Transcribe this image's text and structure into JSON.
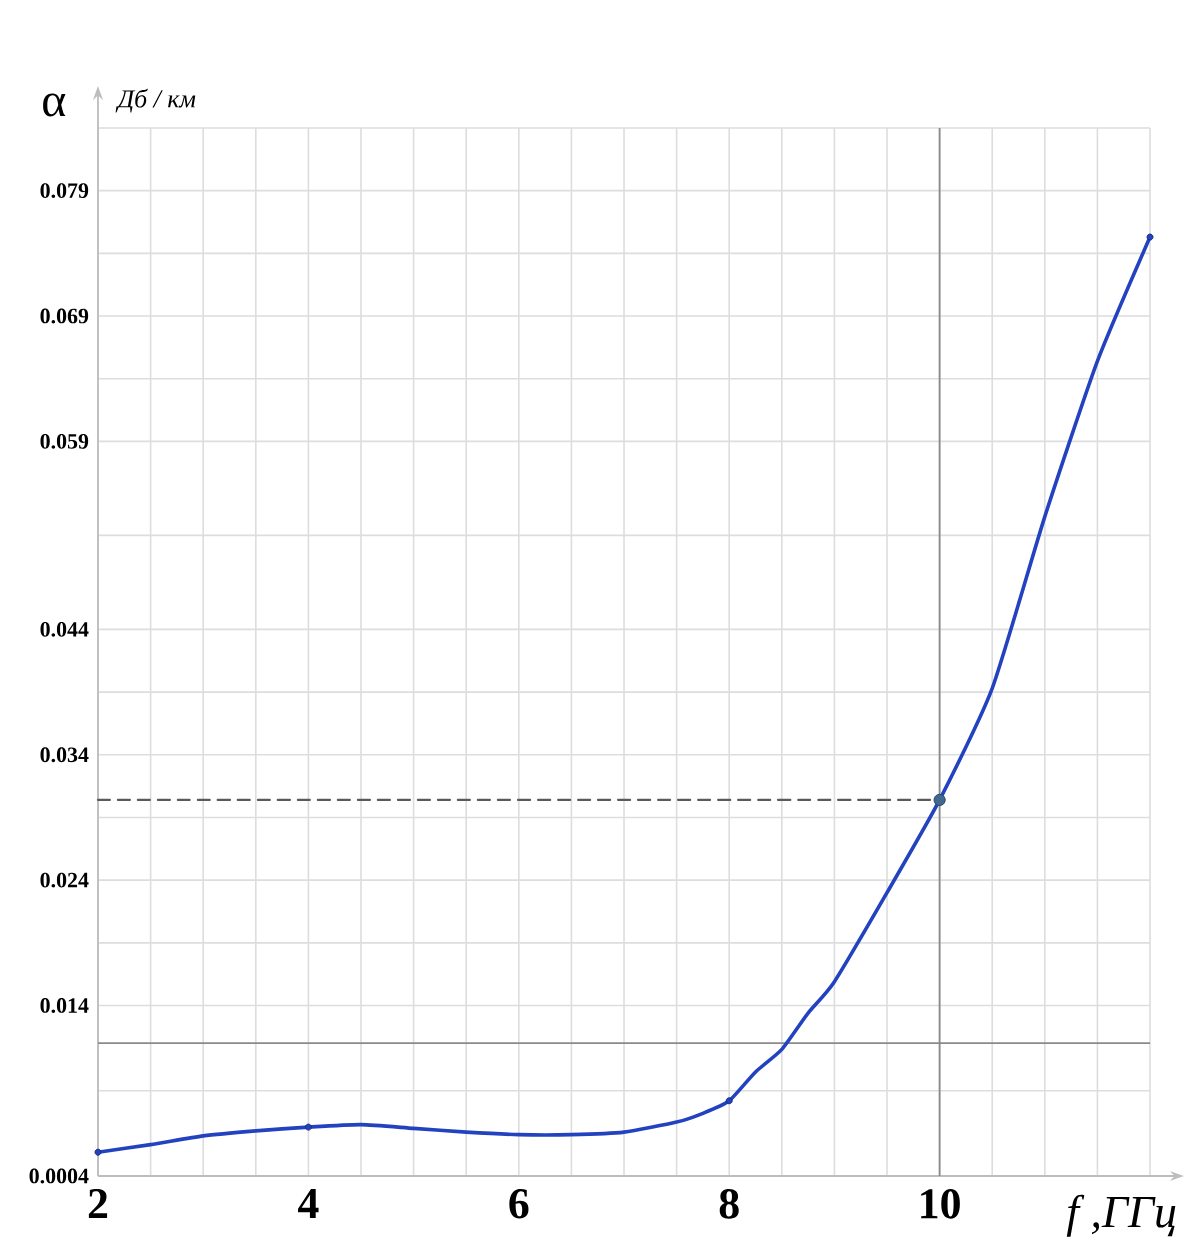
{
  "chart_data": {
    "type": "line",
    "xlabel": "f ,ГГц",
    "ylabel": "α",
    "annotations": [
      "Дб / км"
    ],
    "xlim": [
      2,
      12
    ],
    "ylim": [
      0.0004,
      0.084
    ],
    "xticks": [
      2,
      {
        "value": 2.5,
        "label": null
      },
      {
        "value": 3,
        "label": null
      },
      {
        "value": 3.5,
        "label": null
      },
      4,
      {
        "value": 4.5,
        "label": null
      },
      {
        "value": 5,
        "label": null
      },
      {
        "value": 5.5,
        "label": null
      },
      6,
      {
        "value": 6.5,
        "label": null
      },
      {
        "value": 7,
        "label": null
      },
      {
        "value": 7.5,
        "label": null
      },
      8,
      {
        "value": 8.5,
        "label": null
      },
      {
        "value": 9,
        "label": null
      },
      {
        "value": 9.5,
        "label": null
      },
      10,
      {
        "value": 10.5,
        "label": null
      },
      {
        "value": 11,
        "label": null
      },
      {
        "value": 11.5,
        "label": null
      },
      {
        "value": 12,
        "label": null
      }
    ],
    "yticks": [
      0.0004,
      {
        "value": 0.0072,
        "label": null
      },
      0.014,
      {
        "value": 0.019,
        "label": null
      },
      0.024,
      {
        "value": 0.029,
        "label": null
      },
      0.034,
      {
        "value": 0.039,
        "label": null
      },
      0.044,
      {
        "value": 0.0515,
        "label": null
      },
      0.059,
      {
        "value": 0.064,
        "label": null
      },
      0.069,
      {
        "value": 0.074,
        "label": null
      },
      0.079,
      {
        "value": 0.084,
        "label": null
      }
    ],
    "grid": true,
    "series": [
      {
        "color": "#2342c0",
        "marker": "none",
        "line_style": "solid",
        "x": [
          2,
          2.5,
          3,
          3.5,
          4,
          4.5,
          5,
          5.5,
          6,
          6.5,
          7,
          7.5,
          7.75,
          8,
          8.25,
          8.5,
          8.75,
          9,
          9.5,
          10,
          10.5,
          11,
          11.5,
          12
        ],
        "values": [
          0.0023,
          0.0029,
          0.0036,
          0.004,
          0.0043,
          0.0045,
          0.0042,
          0.0039,
          0.0037,
          0.0037,
          0.0039,
          0.0047,
          0.0054,
          0.0064,
          0.0087,
          0.0105,
          0.0134,
          0.0159,
          0.023,
          0.0304,
          0.0393,
          0.053,
          0.0654,
          0.0753
        ]
      },
      {
        "type": "scatter",
        "color": "#2342c0",
        "marker": "circle",
        "x": [
          2,
          4,
          8,
          12
        ],
        "values": [
          0.0023,
          0.0043,
          0.0064,
          0.0753
        ]
      },
      {
        "type": "line",
        "color": "#5a5a5a",
        "marker": "none",
        "line_style": "dashed",
        "x": [
          2,
          10
        ],
        "values": [
          0.0304,
          0.0304
        ]
      },
      {
        "type": "scatter",
        "color": "#41698f",
        "marker": "circle",
        "x": [
          10
        ],
        "values": [
          0.0304
        ]
      }
    ],
    "ref_lines": [
      {
        "axis": "x",
        "value": 10,
        "color": "#8a8a8a"
      },
      {
        "axis": "y",
        "value": 0.011,
        "color": "#8a8a8a"
      }
    ]
  }
}
